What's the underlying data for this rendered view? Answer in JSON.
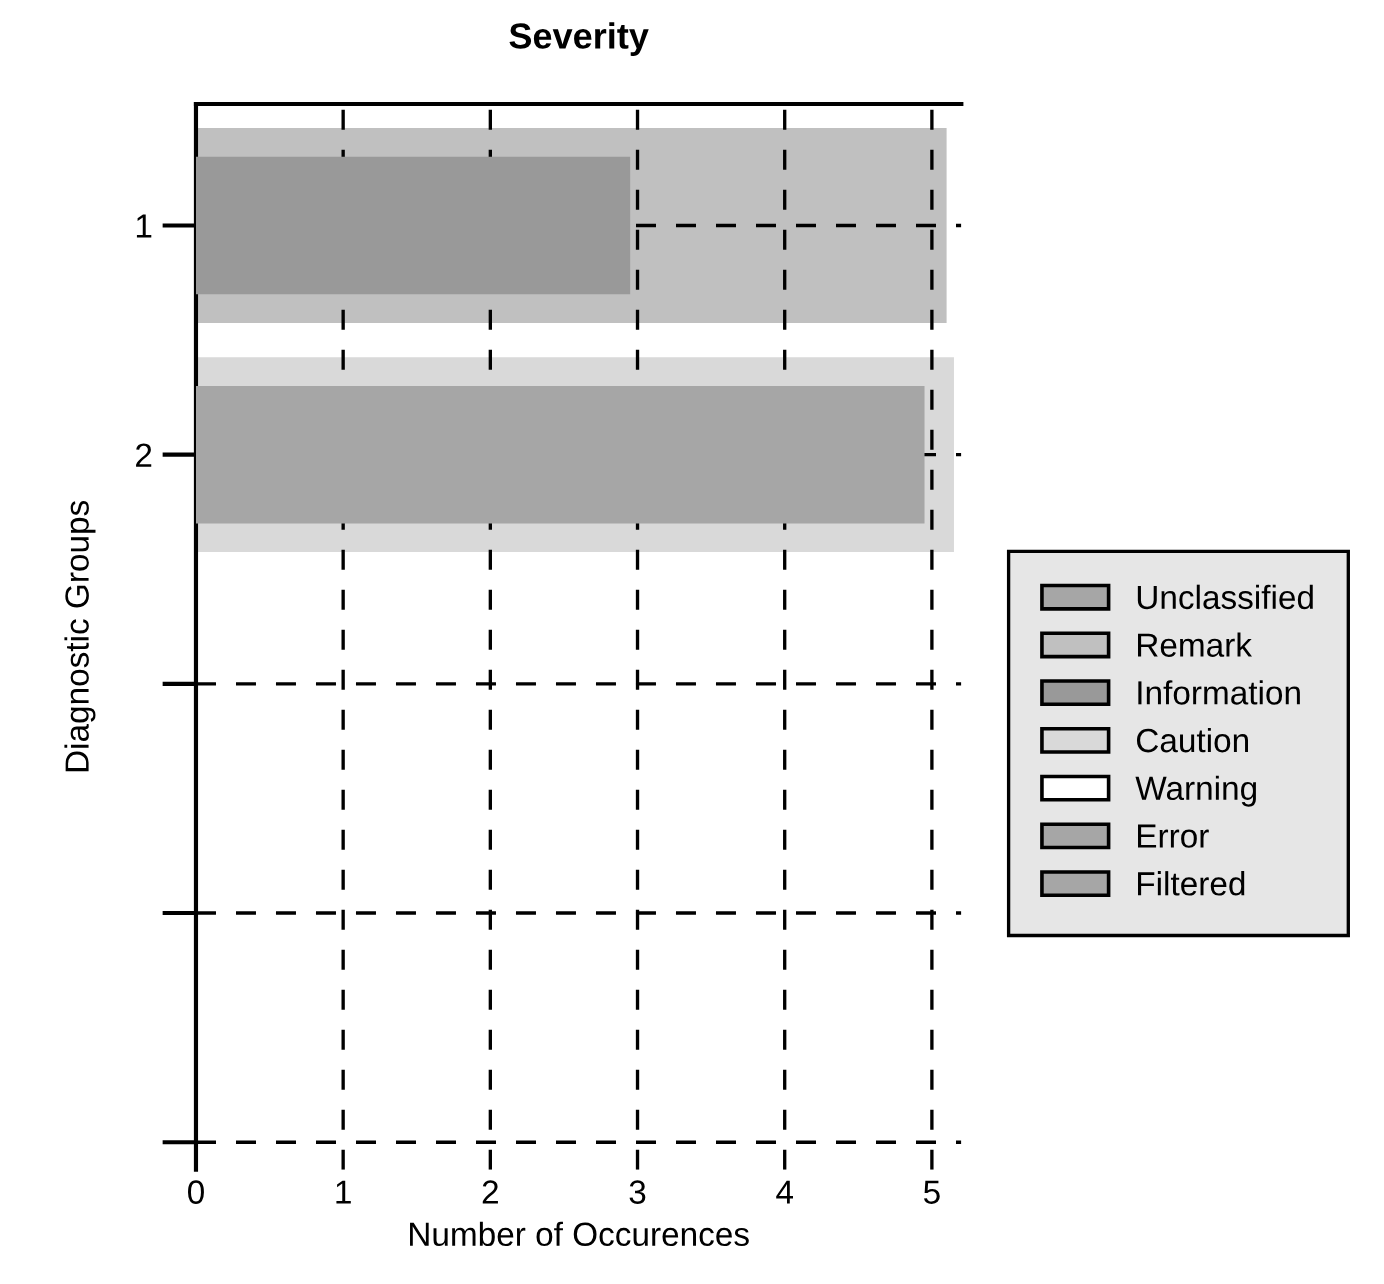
{
  "chart_data": {
    "type": "bar",
    "orientation": "horizontal",
    "title": "Severity",
    "xlabel": "Number of Occurences",
    "ylabel": "Diagnostic Groups",
    "categories": [
      "1",
      "2",
      null,
      null,
      null
    ],
    "series": [
      {
        "name": "Unclassified",
        "color": "#a6a6a6",
        "values": [
          null,
          null,
          null,
          null,
          null
        ]
      },
      {
        "name": "Remark",
        "color": "#c0c0c0",
        "values": [
          5.1,
          null,
          null,
          null,
          null
        ]
      },
      {
        "name": "Information",
        "color": "#999999",
        "values": [
          2.95,
          null,
          null,
          null,
          null
        ]
      },
      {
        "name": "Caution",
        "color": "#d9d9d9",
        "values": [
          null,
          5.15,
          null,
          null,
          null
        ]
      },
      {
        "name": "Warning",
        "color": "#ffffff",
        "values": [
          null,
          null,
          null,
          null,
          null
        ]
      },
      {
        "name": "Error",
        "color": "#a6a6a6",
        "values": [
          null,
          null,
          null,
          null,
          null
        ]
      },
      {
        "name": "Filtered",
        "color": "#a6a6a6",
        "values": [
          null,
          4.95,
          null,
          null,
          null
        ]
      }
    ],
    "xlim": [
      0,
      5.2
    ],
    "xticks": [
      0,
      1,
      2,
      3,
      4,
      5
    ],
    "grid": true,
    "legend": "right"
  }
}
